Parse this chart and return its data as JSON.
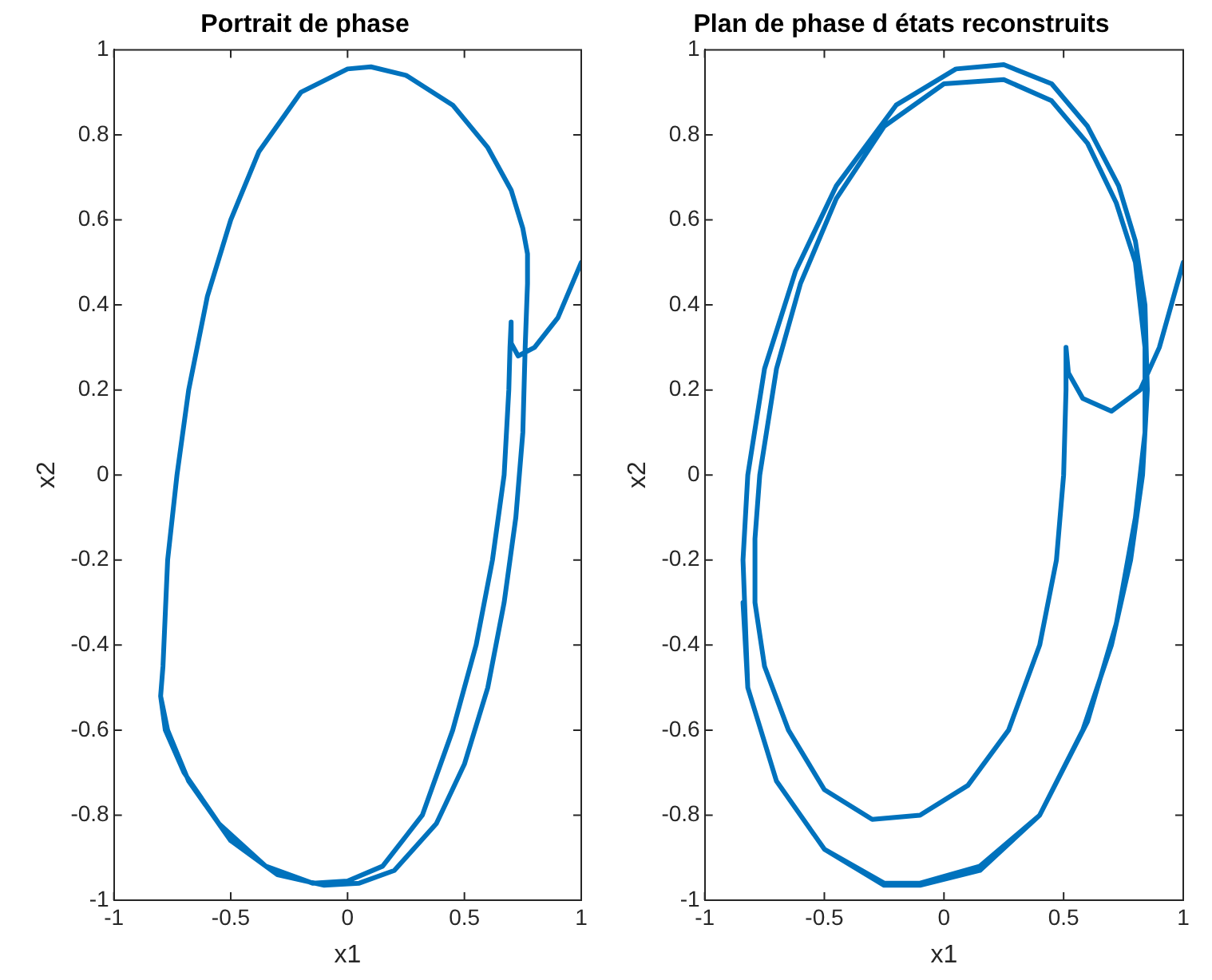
{
  "chart_data": [
    {
      "type": "line",
      "title": "Portrait de phase",
      "xlabel": "x1",
      "ylabel": "x2",
      "xlim": [
        -1,
        1
      ],
      "ylim": [
        -1,
        1
      ],
      "xticks": [
        -1,
        -0.5,
        0,
        0.5,
        1
      ],
      "yticks": [
        -1,
        -0.8,
        -0.6,
        -0.4,
        -0.2,
        0,
        0.2,
        0.4,
        0.6,
        0.8,
        1
      ],
      "marker": "none",
      "line_style": "solid",
      "series": [
        {
          "color": "#0072bd",
          "x": [
            1,
            0.9,
            0.8,
            0.73,
            0.7,
            0.7,
            0.695,
            0.69,
            0.67,
            0.62,
            0.55,
            0.45,
            0.32,
            0.15,
            0,
            -0.15,
            -0.35,
            -0.55,
            -0.7,
            -0.78,
            -0.8,
            -0.79,
            -0.77,
            -0.73,
            -0.68,
            -0.6,
            -0.5,
            -0.38,
            -0.2,
            0,
            0.1,
            0.25,
            0.45,
            0.6,
            0.7,
            0.75,
            0.77,
            0.77,
            0.76,
            0.75,
            0.72,
            0.67,
            0.6,
            0.5,
            0.38,
            0.2,
            0.05,
            -0.1,
            -0.3,
            -0.5,
            -0.68,
            -0.77,
            -0.8,
            -0.79
          ],
          "values": [
            0.5,
            0.37,
            0.3,
            0.28,
            0.31,
            0.36,
            0.3,
            0.2,
            0,
            -0.2,
            -0.4,
            -0.6,
            -0.8,
            -0.92,
            -0.955,
            -0.96,
            -0.92,
            -0.82,
            -0.7,
            -0.6,
            -0.52,
            -0.45,
            -0.2,
            0,
            0.2,
            0.42,
            0.6,
            0.76,
            0.9,
            0.955,
            0.96,
            0.94,
            0.87,
            0.77,
            0.67,
            0.58,
            0.52,
            0.45,
            0.3,
            0.1,
            -0.1,
            -0.3,
            -0.5,
            -0.68,
            -0.82,
            -0.93,
            -0.96,
            -0.965,
            -0.94,
            -0.86,
            -0.72,
            -0.6,
            -0.52,
            -0.45
          ]
        }
      ]
    },
    {
      "type": "line",
      "title": "Plan de phase d états reconstruits",
      "xlabel": "x1",
      "ylabel": "x2",
      "xlim": [
        -1,
        1
      ],
      "ylim": [
        -1,
        1
      ],
      "xticks": [
        -1,
        -0.5,
        0,
        0.5,
        1
      ],
      "yticks": [
        -1,
        -0.8,
        -0.6,
        -0.4,
        -0.2,
        0,
        0.2,
        0.4,
        0.6,
        0.8,
        1
      ],
      "marker": "none",
      "line_style": "solid",
      "series": [
        {
          "color": "#0072bd",
          "x": [
            1,
            0.9,
            0.82,
            0.7,
            0.58,
            0.52,
            0.51,
            0.51,
            0.5,
            0.47,
            0.4,
            0.27,
            0.1,
            -0.1,
            -0.3,
            -0.5,
            -0.65,
            -0.75,
            -0.79,
            -0.79,
            -0.77,
            -0.7,
            -0.6,
            -0.45,
            -0.25,
            0,
            0.25,
            0.45,
            0.6,
            0.72,
            0.8,
            0.84,
            0.84,
            0.8,
            0.72,
            0.6,
            0.4,
            0.15,
            -0.1,
            -0.25,
            -0.5,
            -0.7,
            -0.82,
            -0.84,
            -0.82,
            -0.75,
            -0.62,
            -0.45,
            -0.2,
            0.05,
            0.25,
            0.45,
            0.6,
            0.73,
            0.8,
            0.84,
            0.85,
            0.83,
            0.78,
            0.7,
            0.58,
            0.4,
            0.15,
            -0.1,
            -0.25,
            -0.5,
            -0.7,
            -0.82,
            -0.84
          ],
          "values": [
            0.5,
            0.3,
            0.2,
            0.15,
            0.18,
            0.24,
            0.3,
            0.2,
            0,
            -0.2,
            -0.4,
            -0.6,
            -0.73,
            -0.8,
            -0.81,
            -0.74,
            -0.6,
            -0.45,
            -0.3,
            -0.15,
            0,
            0.25,
            0.45,
            0.65,
            0.82,
            0.92,
            0.93,
            0.88,
            0.78,
            0.64,
            0.5,
            0.3,
            0.1,
            -0.1,
            -0.35,
            -0.58,
            -0.8,
            -0.92,
            -0.96,
            -0.96,
            -0.88,
            -0.72,
            -0.5,
            -0.2,
            0,
            0.25,
            0.48,
            0.68,
            0.87,
            0.955,
            0.965,
            0.92,
            0.82,
            0.68,
            0.55,
            0.4,
            0.2,
            0,
            -0.2,
            -0.4,
            -0.6,
            -0.8,
            -0.93,
            -0.965,
            -0.965,
            -0.88,
            -0.72,
            -0.5,
            -0.3
          ]
        }
      ]
    }
  ]
}
